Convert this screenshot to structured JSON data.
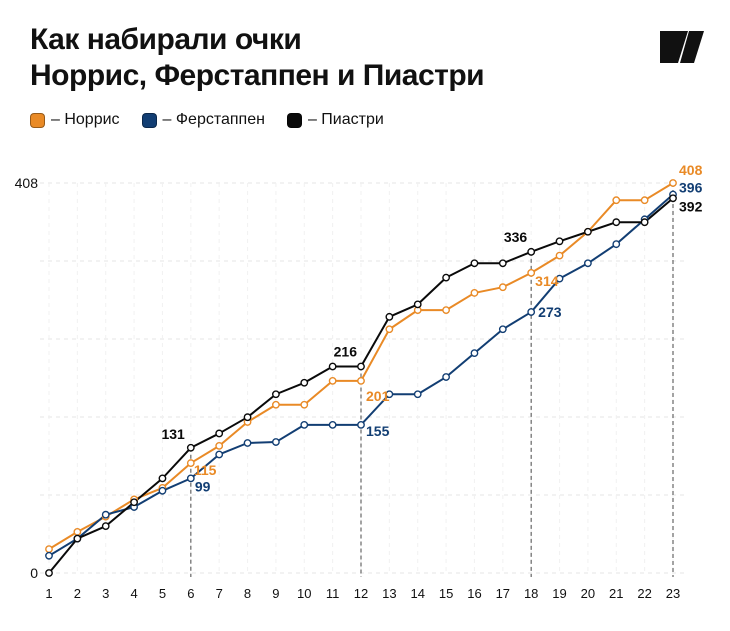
{
  "title": {
    "line1": "Как набирали очки",
    "line2": "Норрис, Ферстаппен и Пиастри"
  },
  "logo": {
    "icon": "brand-logo-icon"
  },
  "legend": [
    {
      "label": "– Норрис",
      "color": "#E98A26"
    },
    {
      "label": "– Ферстаппен",
      "color": "#123E73"
    },
    {
      "label": "– Пиастри",
      "color": "#0A0A0A"
    }
  ],
  "chart_data": {
    "type": "line",
    "title": "Как набирали очки Норрис, Ферстаппен и Пиастри",
    "x": [
      1,
      2,
      3,
      4,
      5,
      6,
      7,
      8,
      9,
      10,
      11,
      12,
      13,
      14,
      15,
      16,
      17,
      18,
      19,
      20,
      21,
      22,
      23
    ],
    "ylim": [
      0,
      408
    ],
    "y_ticks": [
      0,
      408
    ],
    "grid": true,
    "legend_position": "top-left",
    "series": [
      {
        "name": "Норрис",
        "color": "#E98A26",
        "values": [
          25,
          43,
          59,
          77,
          89,
          115,
          133,
          158,
          176,
          176,
          201,
          201,
          255,
          275,
          275,
          293,
          299,
          314,
          332,
          357,
          390,
          390,
          408
        ]
      },
      {
        "name": "Ферстаппен",
        "color": "#123E73",
        "values": [
          18,
          36,
          61,
          69,
          86,
          99,
          124,
          136,
          137,
          155,
          155,
          155,
          187,
          187,
          205,
          230,
          255,
          273,
          308,
          324,
          344,
          370,
          396
        ]
      },
      {
        "name": "Пиастри",
        "color": "#0A0A0A",
        "values": [
          0,
          36,
          49,
          74,
          99,
          131,
          146,
          163,
          187,
          199,
          216,
          216,
          268,
          281,
          309,
          324,
          324,
          336,
          347,
          357,
          367,
          367,
          392
        ]
      }
    ],
    "highlights": [
      6,
      12,
      18,
      23
    ],
    "annotations": [
      {
        "series": "Пиастри",
        "x": 6,
        "label": "131"
      },
      {
        "series": "Норрис",
        "x": 6,
        "label": "115"
      },
      {
        "series": "Ферстаппен",
        "x": 6,
        "label": "99"
      },
      {
        "series": "Пиастри",
        "x": 12,
        "label": "216"
      },
      {
        "series": "Норрис",
        "x": 12,
        "label": "201"
      },
      {
        "series": "Ферстаппен",
        "x": 12,
        "label": "155"
      },
      {
        "series": "Пиастри",
        "x": 18,
        "label": "336"
      },
      {
        "series": "Норрис",
        "x": 18,
        "label": "314"
      },
      {
        "series": "Ферстаппен",
        "x": 18,
        "label": "273"
      },
      {
        "series": "Норрис",
        "x": 23,
        "label": "408"
      },
      {
        "series": "Ферстаппен",
        "x": 23,
        "label": "396"
      },
      {
        "series": "Пиастри",
        "x": 23,
        "label": "392"
      }
    ]
  }
}
